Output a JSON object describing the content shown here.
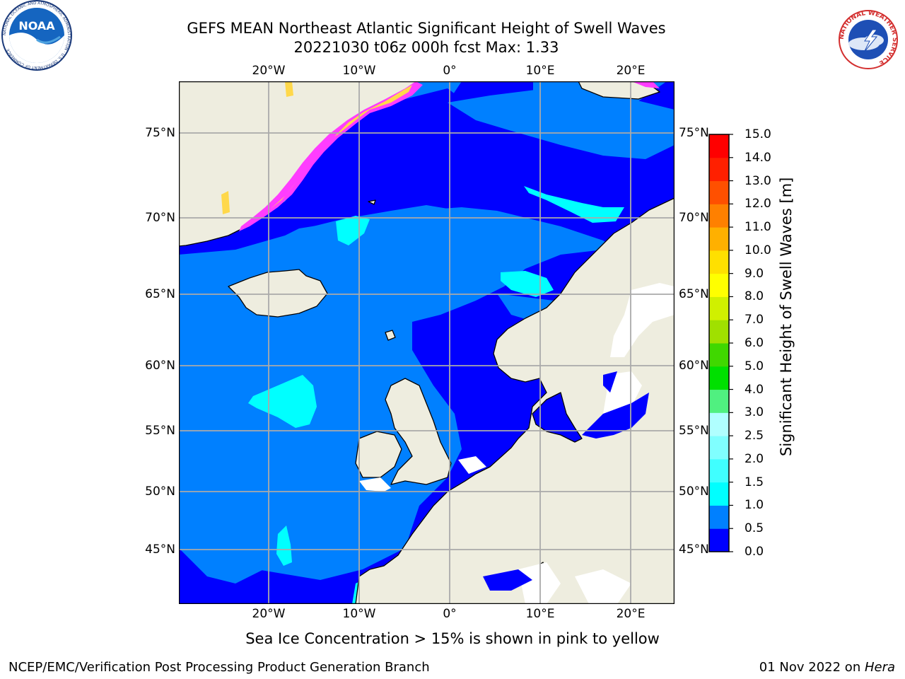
{
  "header": {
    "title_line1": "GEFS MEAN Northeast Atlantic Significant Height of Swell Waves",
    "title_line2": "20221030 t06z 000h fcst   Max: 1.33"
  },
  "logos": {
    "left": "noaa-logo",
    "right": "national-weather-service-logo",
    "left_text": "NOAA",
    "left_ring_text": "NATIONAL OCEANIC AND ATMOSPHERIC ADMINISTRATION · U.S. DEPARTMENT OF COMMERCE",
    "right_ring_text": "NATIONAL WEATHER SERVICE"
  },
  "map": {
    "lon_labels": [
      "20°W",
      "10°W",
      "0°",
      "10°E",
      "20°E"
    ],
    "lat_labels": [
      "75°N",
      "70°N",
      "65°N",
      "60°N",
      "55°N",
      "50°N",
      "45°N"
    ],
    "colors": {
      "land": "#eeeddf",
      "sea_0_05": "#0000ff",
      "sea_05_10": "#0080ff",
      "sea_10_15": "#00ffff",
      "ice_pink": "#ff3dff",
      "ice_yellow": "#ffd84a",
      "grid": "#aaaaaa",
      "frame": "#000000"
    }
  },
  "colorbar": {
    "label": "Significant Height of Swell Waves [m]",
    "ticks": [
      "0.0",
      "0.5",
      "1.0",
      "1.5",
      "2.0",
      "2.5",
      "3.0",
      "4.0",
      "5.0",
      "6.0",
      "7.0",
      "8.0",
      "9.0",
      "10.0",
      "11.0",
      "12.0",
      "13.0",
      "14.0",
      "15.0"
    ],
    "colors": [
      "#0000ff",
      "#0080ff",
      "#00ffff",
      "#40ffff",
      "#80ffff",
      "#b0ffff",
      "#50f080",
      "#00e000",
      "#40d800",
      "#a0e000",
      "#d0f000",
      "#ffff00",
      "#ffe000",
      "#ffb000",
      "#ff8000",
      "#ff5000",
      "#ff2000",
      "#ff0000"
    ]
  },
  "caption": "Sea Ice Concentration > 15% is shown in pink to yellow",
  "footer": {
    "left": "NCEP/EMC/Verification Post Processing Product Generation Branch",
    "right_date": "01 Nov 2022 on ",
    "right_host": "Hera"
  }
}
